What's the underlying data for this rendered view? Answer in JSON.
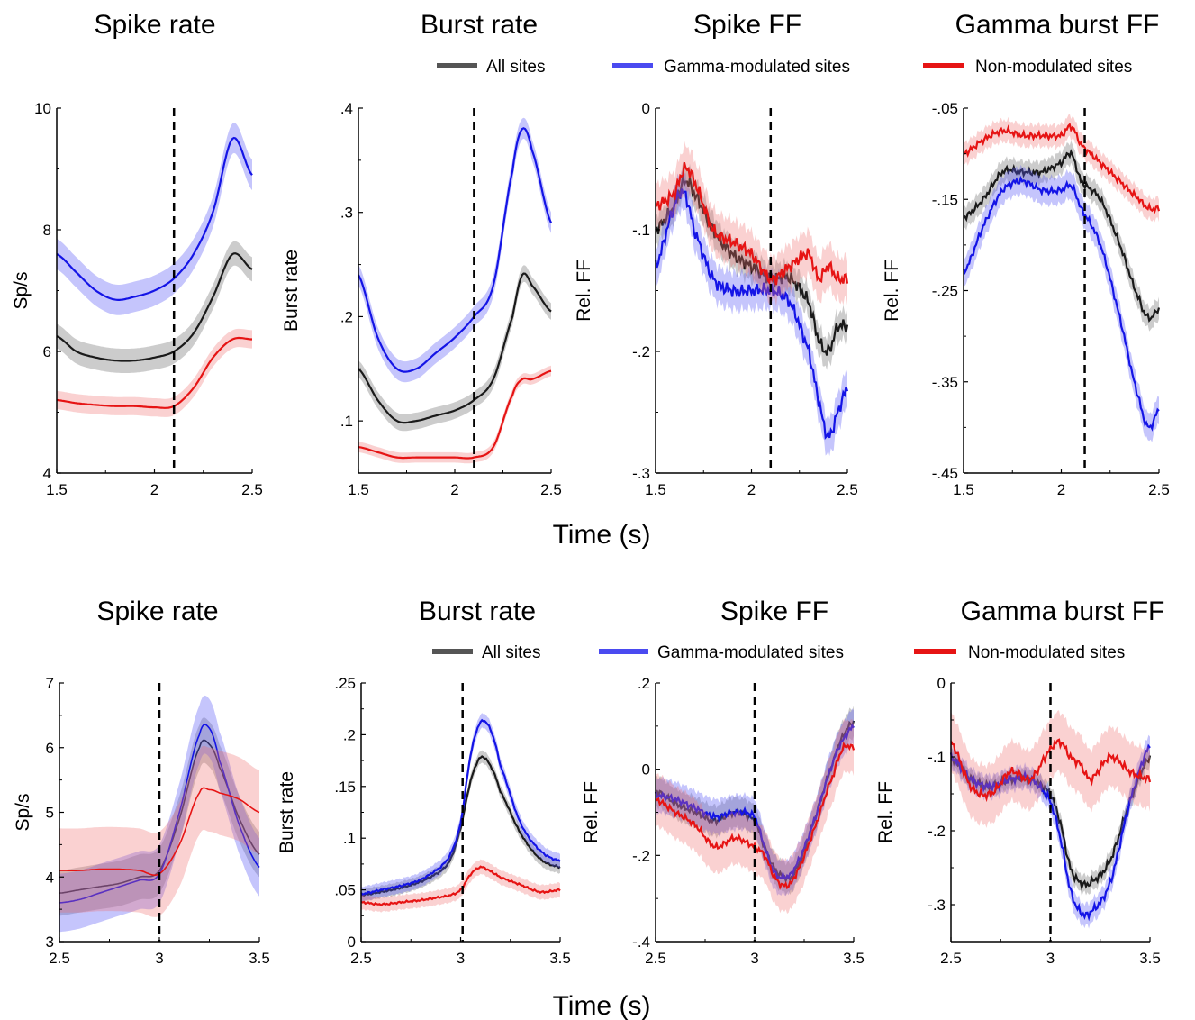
{
  "xlabel": "Time (s)",
  "legend": [
    {
      "name": "All sites",
      "color": "#1a1a1a"
    },
    {
      "name": "Gamma-modulated sites",
      "color": "#1414e6"
    },
    {
      "name": "Non-modulated sites",
      "color": "#e61414"
    }
  ],
  "colors": {
    "all": "#1a1a1a",
    "gamma": "#1414e6",
    "non": "#e61414"
  },
  "chart_data": [
    {
      "type": "line",
      "row": 1,
      "title": "Spike rate",
      "ylabel": "Sp/s",
      "xlim": [
        1.5,
        2.5
      ],
      "ylim": [
        4,
        10
      ],
      "xticks": [
        1.5,
        2,
        2.5
      ],
      "yticks": [
        4,
        6,
        8,
        10
      ],
      "vline": 2.1,
      "noise": 0,
      "grid": false,
      "x": [
        1.5,
        1.6,
        1.7,
        1.8,
        1.9,
        2.0,
        2.1,
        2.2,
        2.3,
        2.4,
        2.5
      ],
      "series": [
        {
          "key": "all",
          "values": [
            6.25,
            6.0,
            5.9,
            5.85,
            5.85,
            5.9,
            6.0,
            6.3,
            6.9,
            7.6,
            7.35
          ],
          "band": 0.2
        },
        {
          "key": "gamma",
          "values": [
            7.6,
            7.3,
            7.0,
            6.85,
            6.9,
            7.0,
            7.2,
            7.6,
            8.3,
            9.5,
            8.9
          ],
          "band": 0.25
        },
        {
          "key": "non",
          "values": [
            5.2,
            5.15,
            5.12,
            5.1,
            5.1,
            5.08,
            5.1,
            5.4,
            5.9,
            6.2,
            6.2
          ],
          "band": 0.15
        }
      ]
    },
    {
      "type": "line",
      "row": 1,
      "title": "Burst rate",
      "ylabel": "Burst rate",
      "xlim": [
        1.5,
        2.5
      ],
      "ylim": [
        0.05,
        0.4
      ],
      "xticks": [
        1.5,
        2,
        2.5
      ],
      "yticks": [
        0.1,
        0.2,
        0.3,
        0.4
      ],
      "vline": 2.1,
      "noise": 0,
      "grid": false,
      "x": [
        1.5,
        1.6,
        1.7,
        1.8,
        1.9,
        2.0,
        2.1,
        2.2,
        2.3,
        2.35,
        2.4,
        2.5
      ],
      "series": [
        {
          "key": "all",
          "values": [
            0.15,
            0.12,
            0.1,
            0.1,
            0.105,
            0.11,
            0.12,
            0.14,
            0.2,
            0.24,
            0.23,
            0.205
          ],
          "band": 0.008
        },
        {
          "key": "gamma",
          "values": [
            0.24,
            0.18,
            0.15,
            0.15,
            0.165,
            0.18,
            0.2,
            0.23,
            0.34,
            0.38,
            0.36,
            0.29
          ],
          "band": 0.01
        },
        {
          "key": "non",
          "values": [
            0.075,
            0.07,
            0.065,
            0.065,
            0.065,
            0.065,
            0.065,
            0.075,
            0.125,
            0.14,
            0.14,
            0.148
          ],
          "band": 0.005
        }
      ]
    },
    {
      "type": "line",
      "row": 1,
      "title": "Spike FF",
      "ylabel": "Rel. FF",
      "xlim": [
        1.5,
        2.5
      ],
      "ylim": [
        -0.3,
        0
      ],
      "xticks": [
        1.5,
        2,
        2.5
      ],
      "yticks": [
        -0.3,
        -0.2,
        -0.1,
        0
      ],
      "vline": 2.1,
      "noise": 0.006,
      "grid": false,
      "x": [
        1.5,
        1.6,
        1.65,
        1.7,
        1.8,
        1.9,
        2.0,
        2.1,
        2.2,
        2.3,
        2.35,
        2.4,
        2.45,
        2.5
      ],
      "series": [
        {
          "key": "all",
          "values": [
            -0.1,
            -0.08,
            -0.06,
            -0.07,
            -0.1,
            -0.12,
            -0.13,
            -0.14,
            -0.14,
            -0.16,
            -0.19,
            -0.2,
            -0.18,
            -0.18
          ],
          "band": 0.012
        },
        {
          "key": "gamma",
          "values": [
            -0.13,
            -0.08,
            -0.07,
            -0.1,
            -0.14,
            -0.15,
            -0.15,
            -0.15,
            -0.16,
            -0.2,
            -0.24,
            -0.27,
            -0.25,
            -0.23
          ],
          "band": 0.015
        },
        {
          "key": "non",
          "values": [
            -0.08,
            -0.07,
            -0.05,
            -0.06,
            -0.1,
            -0.11,
            -0.12,
            -0.14,
            -0.13,
            -0.12,
            -0.14,
            -0.13,
            -0.14,
            -0.14
          ],
          "band": 0.018
        }
      ]
    },
    {
      "type": "line",
      "row": 1,
      "title": "Gamma burst FF",
      "ylabel": "Rel. FF",
      "xlim": [
        1.5,
        2.5
      ],
      "ylim": [
        -0.45,
        -0.05
      ],
      "xticks": [
        1.5,
        2,
        2.5
      ],
      "yticks": [
        -0.45,
        -0.35,
        -0.25,
        -0.15,
        -0.05
      ],
      "vline": 2.12,
      "noise": 0.004,
      "grid": false,
      "x": [
        1.5,
        1.6,
        1.7,
        1.8,
        1.9,
        2.0,
        2.05,
        2.1,
        2.2,
        2.3,
        2.4,
        2.45,
        2.5
      ],
      "series": [
        {
          "key": "all",
          "values": [
            -0.17,
            -0.15,
            -0.12,
            -0.12,
            -0.12,
            -0.11,
            -0.1,
            -0.13,
            -0.15,
            -0.2,
            -0.26,
            -0.28,
            -0.27
          ],
          "band": 0.012
        },
        {
          "key": "gamma",
          "values": [
            -0.23,
            -0.18,
            -0.14,
            -0.13,
            -0.14,
            -0.14,
            -0.135,
            -0.16,
            -0.2,
            -0.28,
            -0.37,
            -0.4,
            -0.38
          ],
          "band": 0.015
        },
        {
          "key": "non",
          "values": [
            -0.1,
            -0.085,
            -0.075,
            -0.08,
            -0.08,
            -0.08,
            -0.07,
            -0.09,
            -0.11,
            -0.13,
            -0.15,
            -0.16,
            -0.16
          ],
          "band": 0.012
        }
      ]
    },
    {
      "type": "line",
      "row": 2,
      "title": "Spike rate",
      "ylabel": "Sp/s",
      "xlim": [
        2.5,
        3.5
      ],
      "ylim": [
        3,
        7
      ],
      "xticks": [
        2.5,
        3,
        3.5
      ],
      "yticks": [
        3,
        4,
        5,
        6,
        7
      ],
      "vline": 3.0,
      "noise": 0,
      "grid": false,
      "x": [
        2.5,
        2.6,
        2.7,
        2.8,
        2.9,
        3.0,
        3.1,
        3.2,
        3.25,
        3.3,
        3.4,
        3.5
      ],
      "series": [
        {
          "key": "all",
          "values": [
            3.75,
            3.8,
            3.85,
            3.9,
            4.0,
            4.1,
            4.9,
            6.0,
            6.05,
            5.7,
            4.9,
            4.35
          ],
          "band": 0.35
        },
        {
          "key": "gamma",
          "values": [
            3.6,
            3.65,
            3.75,
            3.85,
            3.95,
            4.05,
            5.0,
            6.2,
            6.3,
            5.8,
            4.8,
            4.15
          ],
          "band": 0.45
        },
        {
          "key": "non",
          "values": [
            4.1,
            4.1,
            4.12,
            4.12,
            4.1,
            4.05,
            4.5,
            5.3,
            5.35,
            5.3,
            5.2,
            5.0
          ],
          "band": 0.65
        }
      ]
    },
    {
      "type": "line",
      "row": 2,
      "title": "Burst rate",
      "ylabel": "Burst rate",
      "xlim": [
        2.5,
        3.5
      ],
      "ylim": [
        0,
        0.25
      ],
      "xticks": [
        2.5,
        3,
        3.5
      ],
      "yticks": [
        0,
        0.05,
        0.1,
        0.15,
        0.2,
        0.25
      ],
      "vline": 3.01,
      "noise": 0.001,
      "grid": false,
      "x": [
        2.5,
        2.6,
        2.7,
        2.8,
        2.9,
        2.95,
        3.0,
        3.05,
        3.1,
        3.15,
        3.2,
        3.3,
        3.4,
        3.5
      ],
      "series": [
        {
          "key": "all",
          "values": [
            0.045,
            0.048,
            0.052,
            0.058,
            0.068,
            0.08,
            0.11,
            0.155,
            0.178,
            0.17,
            0.145,
            0.105,
            0.08,
            0.072
          ],
          "band": 0.006
        },
        {
          "key": "gamma",
          "values": [
            0.046,
            0.05,
            0.054,
            0.06,
            0.072,
            0.085,
            0.115,
            0.18,
            0.212,
            0.205,
            0.17,
            0.115,
            0.088,
            0.078
          ],
          "band": 0.007
        },
        {
          "key": "non",
          "values": [
            0.038,
            0.036,
            0.038,
            0.04,
            0.043,
            0.045,
            0.05,
            0.065,
            0.072,
            0.068,
            0.062,
            0.055,
            0.048,
            0.05
          ],
          "band": 0.007
        }
      ]
    },
    {
      "type": "line",
      "row": 2,
      "title": "Spike FF",
      "ylabel": "Rel. FF",
      "xlim": [
        2.5,
        3.5
      ],
      "ylim": [
        -0.4,
        0.2
      ],
      "xticks": [
        2.5,
        3,
        3.5
      ],
      "yticks": [
        -0.4,
        -0.2,
        0,
        0.2
      ],
      "vline": 3.0,
      "noise": 0.008,
      "grid": false,
      "x": [
        2.5,
        2.6,
        2.7,
        2.8,
        2.9,
        3.0,
        3.05,
        3.1,
        3.15,
        3.2,
        3.3,
        3.4,
        3.45,
        3.5
      ],
      "series": [
        {
          "key": "all",
          "values": [
            -0.05,
            -0.08,
            -0.1,
            -0.12,
            -0.1,
            -0.12,
            -0.18,
            -0.23,
            -0.25,
            -0.24,
            -0.12,
            0.02,
            0.08,
            0.11
          ],
          "band": 0.035
        },
        {
          "key": "gamma",
          "values": [
            -0.06,
            -0.07,
            -0.09,
            -0.11,
            -0.1,
            -0.11,
            -0.18,
            -0.24,
            -0.25,
            -0.23,
            -0.12,
            0.02,
            0.07,
            0.1
          ],
          "band": 0.04
        },
        {
          "key": "non",
          "values": [
            -0.07,
            -0.1,
            -0.13,
            -0.18,
            -0.16,
            -0.18,
            -0.2,
            -0.25,
            -0.27,
            -0.25,
            -0.14,
            -0.01,
            0.05,
            0.05
          ],
          "band": 0.06
        }
      ]
    },
    {
      "type": "line",
      "row": 2,
      "title": "Gamma burst FF",
      "ylabel": "Rel. FF",
      "xlim": [
        2.5,
        3.5
      ],
      "ylim": [
        -0.35,
        0
      ],
      "xticks": [
        2.5,
        3,
        3.5
      ],
      "yticks": [
        -0.3,
        -0.2,
        -0.1,
        0
      ],
      "vline": 3.0,
      "noise": 0.006,
      "grid": false,
      "x": [
        2.5,
        2.6,
        2.7,
        2.8,
        2.9,
        3.0,
        3.05,
        3.1,
        3.15,
        3.2,
        3.3,
        3.4,
        3.5
      ],
      "series": [
        {
          "key": "all",
          "values": [
            -0.1,
            -0.13,
            -0.14,
            -0.13,
            -0.13,
            -0.15,
            -0.19,
            -0.25,
            -0.27,
            -0.27,
            -0.24,
            -0.16,
            -0.1
          ],
          "band": 0.012
        },
        {
          "key": "gamma",
          "values": [
            -0.1,
            -0.13,
            -0.14,
            -0.13,
            -0.13,
            -0.16,
            -0.21,
            -0.28,
            -0.31,
            -0.31,
            -0.27,
            -0.16,
            -0.085
          ],
          "band": 0.015
        },
        {
          "key": "non",
          "values": [
            -0.08,
            -0.14,
            -0.15,
            -0.12,
            -0.13,
            -0.09,
            -0.08,
            -0.1,
            -0.11,
            -0.13,
            -0.1,
            -0.12,
            -0.13
          ],
          "band": 0.04
        }
      ]
    }
  ]
}
